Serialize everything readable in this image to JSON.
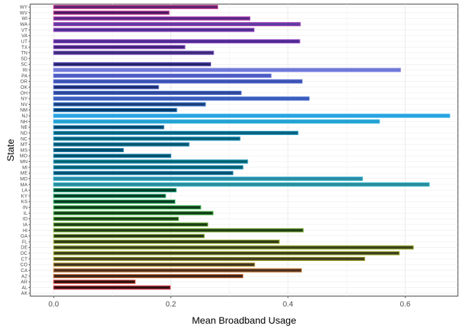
{
  "chart_data": {
    "type": "bar",
    "orientation": "horizontal",
    "xlabel": "Mean Broadband Usage",
    "ylabel": "State",
    "xlim": [
      -0.04,
      0.69
    ],
    "xticks": [
      "0.0",
      "0.2",
      "0.4",
      "0.6"
    ],
    "xtick_values": [
      0,
      0.2,
      0.4,
      0.6
    ],
    "grid": true,
    "legend": "none",
    "categories": [
      "AK",
      "AL",
      "AR",
      "AZ",
      "CA",
      "CO",
      "CT",
      "DC",
      "DE",
      "FL",
      "GA",
      "HI",
      "IA",
      "ID",
      "IL",
      "IN",
      "KS",
      "KY",
      "LA",
      "MA",
      "MD",
      "ME",
      "MI",
      "MN",
      "MO",
      "MS",
      "MT",
      "NC",
      "ND",
      "NE",
      "NH",
      "NJ",
      "NM",
      "NV",
      "NY",
      "OH",
      "OK",
      "OR",
      "PA",
      "RI",
      "SC",
      "SD",
      "TN",
      "TX",
      "UT",
      "VA",
      "VT",
      "WA",
      "WI",
      "WV",
      "WY"
    ],
    "values": [
      0,
      0.199,
      0.139,
      0.323,
      0.423,
      0.343,
      0.531,
      0.59,
      0.614,
      0.385,
      0.257,
      0.426,
      0.263,
      0.213,
      0.272,
      0.251,
      0.207,
      0.191,
      0.209,
      0.641,
      0.527,
      0.306,
      0.323,
      0.331,
      0.2,
      0.119,
      0.231,
      0.318,
      0.417,
      0.188,
      0.556,
      0.676,
      0.21,
      0.259,
      0.436,
      0.32,
      0.179,
      0.424,
      0.371,
      0.592,
      0.268,
      0,
      0.273,
      0.224,
      0.42,
      0,
      0.342,
      0.421,
      0.335,
      0.197,
      0.28
    ],
    "fill_colors": [
      "#1a0808",
      "#2d1010",
      "#2e1212",
      "#3a2418",
      "#4a2e20",
      "#3e3222",
      "#3f3a20",
      "#3c3e1e",
      "#3a421e",
      "#30391a",
      "#263418",
      "#223b18",
      "#1f3c16",
      "#183d16",
      "#123c1a",
      "#0f3c1e",
      "#0b3b22",
      "#073b25",
      "#043d28",
      "#2c8a9a",
      "#2a8ba0",
      "#065070",
      "#056070",
      "#04626e",
      "#03506a",
      "#034a66",
      "#05566e",
      "#066076",
      "#085f78",
      "#08466a",
      "#22a0d0",
      "#2aa2e0",
      "#05386a",
      "#1c3d7a",
      "#3d5cb8",
      "#2e4796",
      "#1e2d6e",
      "#3a52b0",
      "#4a5cc0",
      "#6a7ad8",
      "#222466",
      "#5a5080",
      "#3a2a78",
      "#40227a",
      "#4a2a90",
      "#6a4a9a",
      "#4a3090",
      "#5a3ca0",
      "#5a2a86",
      "#4e1a5e",
      "#5e2470"
    ],
    "border_colors": [
      "#e03c50",
      "#e03c50",
      "#d84a44",
      "#d06a3a",
      "#c8803a",
      "#b89a30",
      "#a8ac30",
      "#a2b030",
      "#9cb030",
      "#98b030",
      "#84b030",
      "#7cb034",
      "#68b03a",
      "#58b040",
      "#4ab448",
      "#3cb450",
      "#2cb060",
      "#20a868",
      "#1a9c74",
      "#2ab2c4",
      "#28a8c8",
      "#2c8cb8",
      "#2a94be",
      "#2a98c2",
      "#2a8eba",
      "#2a86b4",
      "#2a88b6",
      "#2a94c0",
      "#2aa0c8",
      "#2a86b8",
      "#30b0e0",
      "#38b4ec",
      "#2a7cc0",
      "#3a7ccc",
      "#4a74d4",
      "#4a6cd0",
      "#4a64c8",
      "#5a6cd4",
      "#6a70d8",
      "#8884e0",
      "#6a58c8",
      "#7a68b8",
      "#7e56c0",
      "#8a50c0",
      "#9a4ec8",
      "#a05abf",
      "#a04cc0",
      "#b04cbc",
      "#b848b0",
      "#c24096",
      "#cc3c8c"
    ]
  }
}
